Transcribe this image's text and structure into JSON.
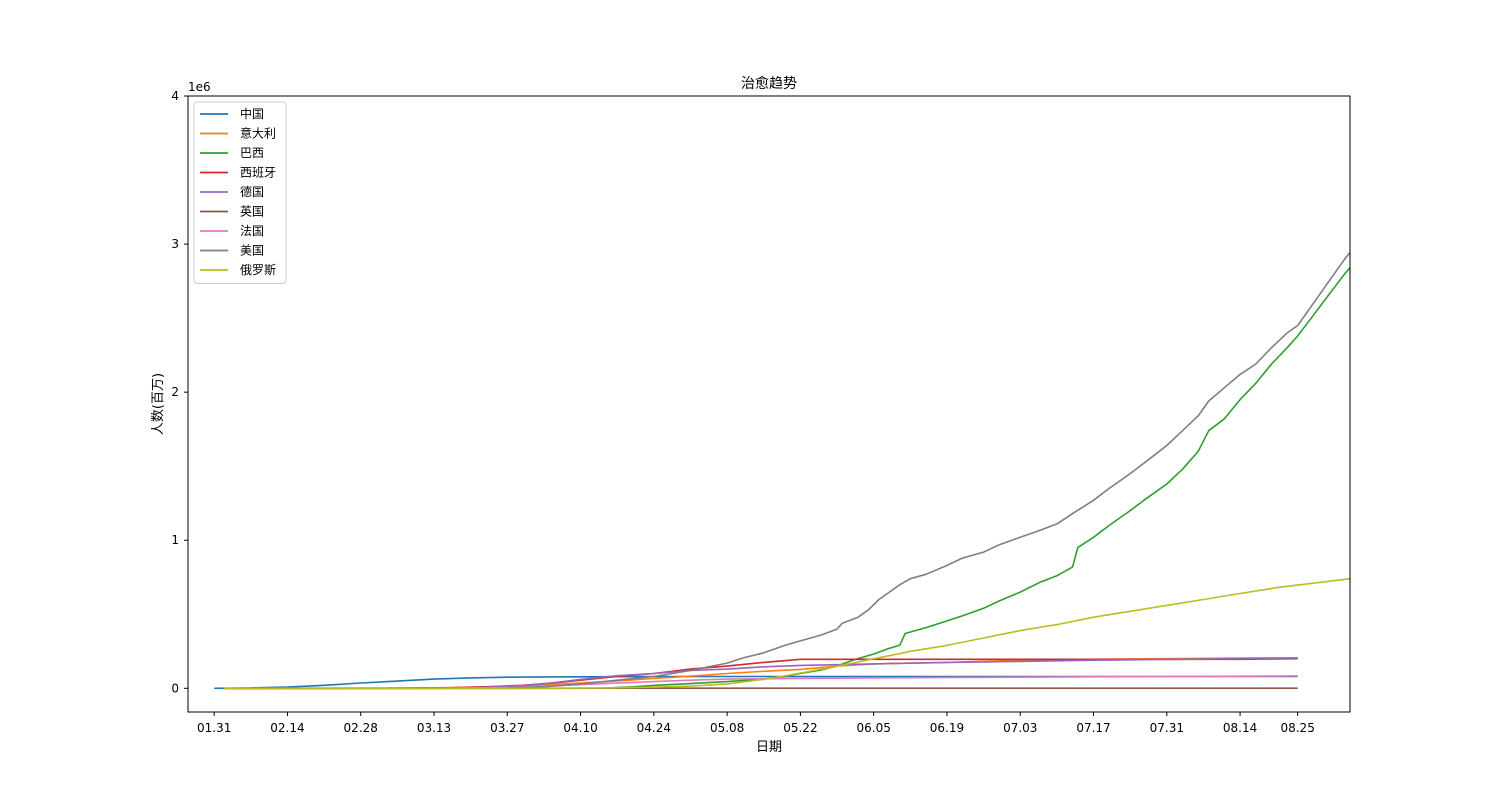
{
  "chart_data": {
    "type": "line",
    "title": "治愈趋势",
    "xlabel": "日期",
    "ylabel": "人数(百万)",
    "y_multiplier_label": "1e6",
    "y_ticks": [
      0,
      1,
      2,
      3,
      4
    ],
    "ylim": [
      -0.16,
      4.0
    ],
    "x_tick_labels": [
      "01.31",
      "02.14",
      "02.28",
      "03.13",
      "03.27",
      "04.10",
      "04.24",
      "05.08",
      "05.22",
      "06.05",
      "06.19",
      "07.03",
      "07.17",
      "07.31",
      "08.14",
      "08.25"
    ],
    "x_tick_days": [
      0,
      14,
      28,
      42,
      56,
      70,
      84,
      98,
      112,
      126,
      140,
      154,
      168,
      182,
      196,
      207
    ],
    "xlim_days": [
      -5,
      217
    ],
    "legend_position": "upper-left",
    "grid": false,
    "series": [
      {
        "name": "中国",
        "color": "#1f77b4",
        "points": [
          [
            0,
            0.0002
          ],
          [
            7,
            0.003
          ],
          [
            14,
            0.008
          ],
          [
            21,
            0.02
          ],
          [
            28,
            0.036
          ],
          [
            35,
            0.049
          ],
          [
            42,
            0.062
          ],
          [
            49,
            0.07
          ],
          [
            56,
            0.075
          ],
          [
            63,
            0.077
          ],
          [
            70,
            0.078
          ],
          [
            77,
            0.0785
          ],
          [
            84,
            0.079
          ],
          [
            98,
            0.0795
          ],
          [
            112,
            0.0795
          ],
          [
            140,
            0.0795
          ],
          [
            168,
            0.08
          ],
          [
            196,
            0.08
          ],
          [
            207,
            0.08
          ]
        ]
      },
      {
        "name": "意大利",
        "color": "#ff7f0e",
        "points": [
          [
            2,
            0.0
          ],
          [
            28,
            0.0005
          ],
          [
            42,
            0.002
          ],
          [
            49,
            0.007
          ],
          [
            56,
            0.013
          ],
          [
            63,
            0.023
          ],
          [
            70,
            0.035
          ],
          [
            77,
            0.05
          ],
          [
            84,
            0.066
          ],
          [
            91,
            0.082
          ],
          [
            98,
            0.1
          ],
          [
            105,
            0.115
          ],
          [
            112,
            0.128
          ],
          [
            119,
            0.15
          ],
          [
            126,
            0.165
          ],
          [
            140,
            0.175
          ],
          [
            154,
            0.19
          ],
          [
            168,
            0.196
          ],
          [
            182,
            0.2
          ],
          [
            196,
            0.204
          ],
          [
            207,
            0.206
          ]
        ]
      },
      {
        "name": "巴西",
        "color": "#2ca02c",
        "points": [
          [
            2,
            0.0
          ],
          [
            60,
            0.0
          ],
          [
            74,
            0.001
          ],
          [
            80,
            0.01
          ],
          [
            85,
            0.022
          ],
          [
            91,
            0.032
          ],
          [
            98,
            0.045
          ],
          [
            105,
            0.063
          ],
          [
            109,
            0.08
          ],
          [
            112,
            0.1
          ],
          [
            116,
            0.124
          ],
          [
            119,
            0.15
          ],
          [
            122,
            0.19
          ],
          [
            126,
            0.232
          ],
          [
            129,
            0.27
          ],
          [
            131,
            0.292
          ],
          [
            132,
            0.37
          ],
          [
            136,
            0.41
          ],
          [
            140,
            0.455
          ],
          [
            143,
            0.49
          ],
          [
            147,
            0.54
          ],
          [
            150,
            0.59
          ],
          [
            154,
            0.65
          ],
          [
            158,
            0.72
          ],
          [
            161,
            0.76
          ],
          [
            164,
            0.82
          ],
          [
            165,
            0.95
          ],
          [
            168,
            1.02
          ],
          [
            171,
            1.1
          ],
          [
            175,
            1.2
          ],
          [
            178,
            1.28
          ],
          [
            182,
            1.38
          ],
          [
            185,
            1.48
          ],
          [
            188,
            1.6
          ],
          [
            190,
            1.74
          ],
          [
            193,
            1.82
          ],
          [
            196,
            1.95
          ],
          [
            199,
            2.06
          ],
          [
            202,
            2.19
          ],
          [
            205,
            2.3
          ],
          [
            207,
            2.38
          ],
          [
            210,
            2.52
          ],
          [
            213,
            2.66
          ],
          [
            216,
            2.8
          ],
          [
            219,
            2.92
          ],
          [
            221,
            2.97
          ]
        ]
      },
      {
        "name": "西班牙",
        "color": "#d62728",
        "points": [
          [
            2,
            0.0
          ],
          [
            30,
            0.001
          ],
          [
            45,
            0.004
          ],
          [
            52,
            0.01
          ],
          [
            59,
            0.02
          ],
          [
            66,
            0.04
          ],
          [
            70,
            0.055
          ],
          [
            77,
            0.08
          ],
          [
            84,
            0.1
          ],
          [
            91,
            0.13
          ],
          [
            98,
            0.15
          ],
          [
            105,
            0.175
          ],
          [
            112,
            0.196
          ],
          [
            140,
            0.196
          ],
          [
            168,
            0.196
          ],
          [
            196,
            0.196
          ],
          [
            207,
            0.2
          ]
        ]
      },
      {
        "name": "德国",
        "color": "#9467bd",
        "points": [
          [
            2,
            0.0
          ],
          [
            28,
            0.0
          ],
          [
            42,
            0.001
          ],
          [
            49,
            0.003
          ],
          [
            56,
            0.012
          ],
          [
            63,
            0.03
          ],
          [
            70,
            0.06
          ],
          [
            77,
            0.085
          ],
          [
            84,
            0.1
          ],
          [
            91,
            0.12
          ],
          [
            98,
            0.13
          ],
          [
            105,
            0.145
          ],
          [
            112,
            0.155
          ],
          [
            126,
            0.165
          ],
          [
            140,
            0.175
          ],
          [
            154,
            0.182
          ],
          [
            168,
            0.19
          ],
          [
            182,
            0.195
          ],
          [
            196,
            0.2
          ],
          [
            207,
            0.205
          ]
        ]
      },
      {
        "name": "英国",
        "color": "#8c564b",
        "points": [
          [
            2,
            0.0
          ],
          [
            50,
            0.0001
          ],
          [
            80,
            0.0004
          ],
          [
            120,
            0.0005
          ],
          [
            207,
            0.0006
          ]
        ]
      },
      {
        "name": "法国",
        "color": "#e377c2",
        "points": [
          [
            2,
            0.0
          ],
          [
            42,
            0.001
          ],
          [
            56,
            0.005
          ],
          [
            63,
            0.012
          ],
          [
            70,
            0.025
          ],
          [
            77,
            0.035
          ],
          [
            84,
            0.045
          ],
          [
            91,
            0.055
          ],
          [
            98,
            0.062
          ],
          [
            112,
            0.067
          ],
          [
            126,
            0.07
          ],
          [
            154,
            0.075
          ],
          [
            182,
            0.08
          ],
          [
            207,
            0.084
          ]
        ]
      },
      {
        "name": "美国",
        "color": "#7f7f7f",
        "points": [
          [
            2,
            0.0
          ],
          [
            42,
            0.0
          ],
          [
            56,
            0.002
          ],
          [
            63,
            0.01
          ],
          [
            70,
            0.03
          ],
          [
            77,
            0.055
          ],
          [
            84,
            0.08
          ],
          [
            91,
            0.12
          ],
          [
            98,
            0.17
          ],
          [
            101,
            0.205
          ],
          [
            105,
            0.24
          ],
          [
            109,
            0.29
          ],
          [
            112,
            0.32
          ],
          [
            116,
            0.36
          ],
          [
            119,
            0.4
          ],
          [
            120,
            0.44
          ],
          [
            123,
            0.48
          ],
          [
            125,
            0.53
          ],
          [
            127,
            0.6
          ],
          [
            129,
            0.65
          ],
          [
            131,
            0.7
          ],
          [
            133,
            0.74
          ],
          [
            136,
            0.77
          ],
          [
            140,
            0.83
          ],
          [
            143,
            0.88
          ],
          [
            147,
            0.92
          ],
          [
            150,
            0.97
          ],
          [
            154,
            1.02
          ],
          [
            158,
            1.07
          ],
          [
            161,
            1.11
          ],
          [
            164,
            1.18
          ],
          [
            168,
            1.27
          ],
          [
            171,
            1.35
          ],
          [
            175,
            1.45
          ],
          [
            178,
            1.53
          ],
          [
            182,
            1.64
          ],
          [
            185,
            1.74
          ],
          [
            188,
            1.84
          ],
          [
            190,
            1.94
          ],
          [
            193,
            2.03
          ],
          [
            196,
            2.12
          ],
          [
            199,
            2.19
          ],
          [
            202,
            2.3
          ],
          [
            205,
            2.4
          ],
          [
            207,
            2.45
          ],
          [
            210,
            2.6
          ],
          [
            213,
            2.75
          ],
          [
            216,
            2.9
          ],
          [
            219,
            3.03
          ],
          [
            221,
            3.13
          ],
          [
            223,
            3.2
          ]
        ]
      },
      {
        "name": "俄罗斯",
        "color": "#bcbd22",
        "points": [
          [
            2,
            0.0
          ],
          [
            60,
            0.0
          ],
          [
            74,
            0.002
          ],
          [
            84,
            0.008
          ],
          [
            91,
            0.015
          ],
          [
            98,
            0.03
          ],
          [
            105,
            0.06
          ],
          [
            110,
            0.09
          ],
          [
            116,
            0.13
          ],
          [
            122,
            0.17
          ],
          [
            126,
            0.2
          ],
          [
            129,
            0.22
          ],
          [
            133,
            0.25
          ],
          [
            140,
            0.29
          ],
          [
            147,
            0.34
          ],
          [
            154,
            0.39
          ],
          [
            161,
            0.43
          ],
          [
            168,
            0.48
          ],
          [
            175,
            0.52
          ],
          [
            182,
            0.56
          ],
          [
            189,
            0.6
          ],
          [
            196,
            0.64
          ],
          [
            203,
            0.68
          ],
          [
            210,
            0.71
          ],
          [
            217,
            0.74
          ],
          [
            221,
            0.77
          ]
        ]
      }
    ]
  }
}
